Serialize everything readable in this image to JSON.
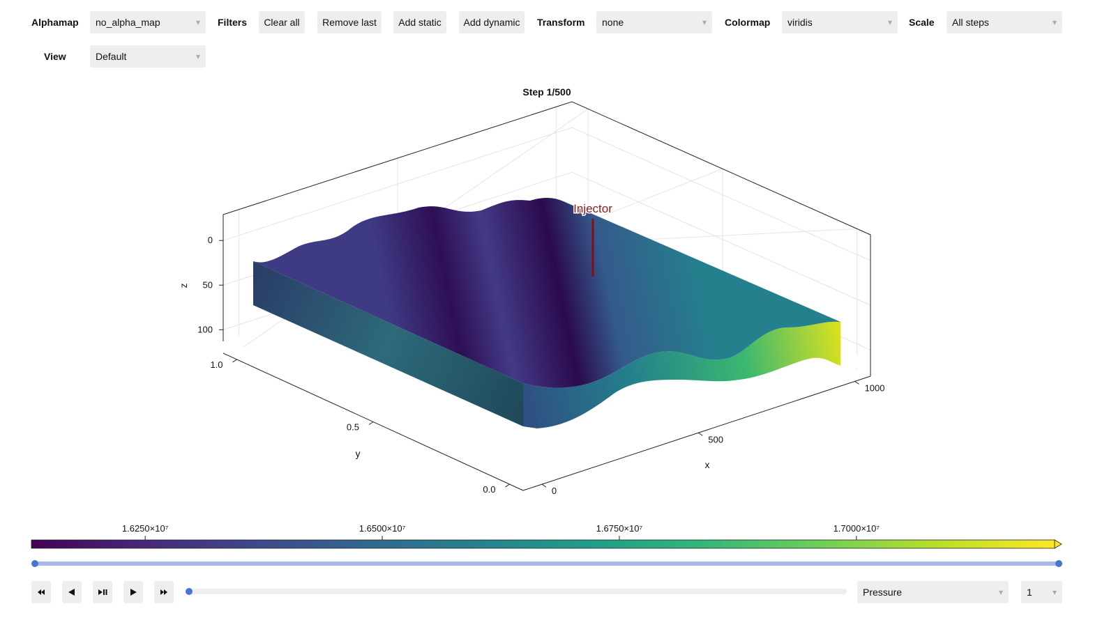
{
  "toolbar": {
    "alphamap": {
      "label": "Alphamap",
      "value": "no_alpha_map"
    },
    "filters": {
      "label": "Filters",
      "buttons": [
        "Clear all",
        "Remove last",
        "Add static",
        "Add dynamic"
      ]
    },
    "transform": {
      "label": "Transform",
      "value": "none"
    },
    "colormap": {
      "label": "Colormap",
      "value": "viridis"
    },
    "scale": {
      "label": "Scale",
      "value": "All steps"
    },
    "view": {
      "label": "View",
      "value": "Default"
    }
  },
  "plot": {
    "title": "Step 1/500",
    "annotation": "Injector",
    "x": {
      "label": "x",
      "lim": [
        -60,
        1050
      ],
      "ticks": [
        0,
        500,
        1000
      ]
    },
    "y": {
      "label": "y",
      "lim": [
        -0.05,
        1.05
      ],
      "ticks": [
        {
          "value": 0,
          "label": "0.0"
        },
        {
          "value": 0.5,
          "label": "0.5"
        },
        {
          "value": 1,
          "label": "1.0"
        }
      ]
    },
    "z": {
      "label": "z",
      "lim": [
        -29,
        113
      ],
      "ticks": [
        0,
        50,
        100
      ]
    }
  },
  "colorbar": {
    "lim": [
      16130000,
      17209000
    ],
    "ticks": [
      {
        "value": 16250000,
        "label": "1.6250×10⁷"
      },
      {
        "value": 16500000,
        "label": "1.6500×10⁷"
      },
      {
        "value": 16750000,
        "label": "1.6750×10⁷"
      },
      {
        "value": 17000000,
        "label": "1.7000×10⁷"
      }
    ]
  },
  "controls": {
    "variable": "Pressure",
    "step": "1"
  }
}
